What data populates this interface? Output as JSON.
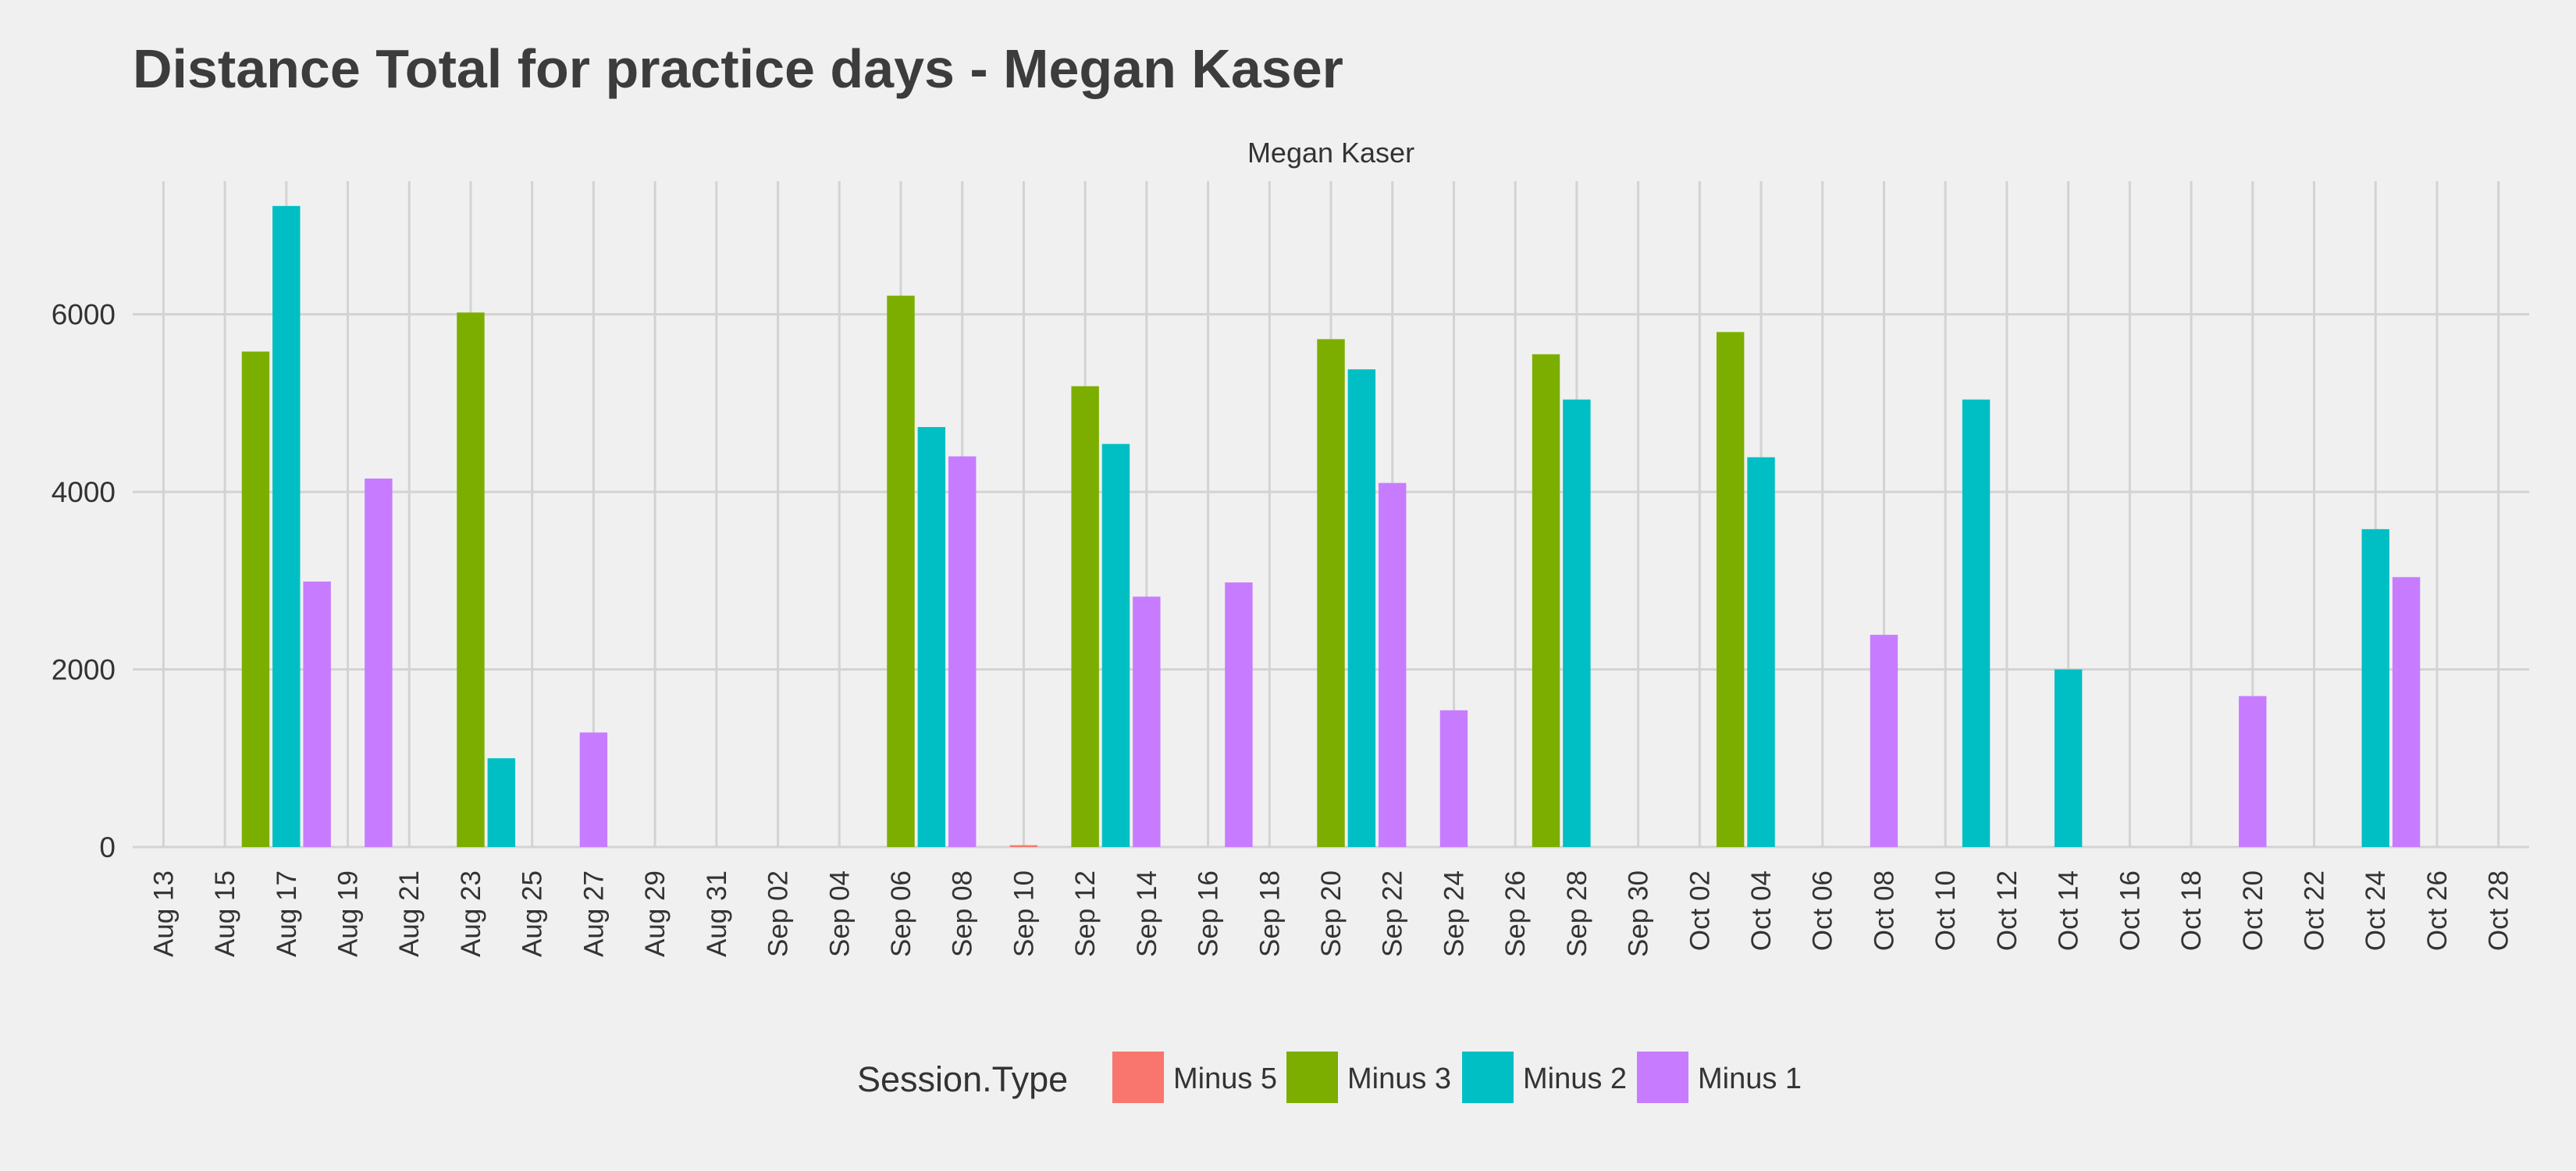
{
  "chart_data": {
    "type": "bar",
    "title": "Distance Total for practice days -  Megan Kaser",
    "facet_label": "Megan Kaser",
    "xlabel": "",
    "ylabel": "",
    "ylim": [
      0,
      7500
    ],
    "yticks": [
      0,
      2000,
      4000,
      6000
    ],
    "x_range": [
      "2018-08-12",
      "2018-10-29"
    ],
    "x_ticks": [
      {
        "date": "2018-08-13",
        "label": "Aug 13"
      },
      {
        "date": "2018-08-15",
        "label": "Aug 15"
      },
      {
        "date": "2018-08-17",
        "label": "Aug 17"
      },
      {
        "date": "2018-08-19",
        "label": "Aug 19"
      },
      {
        "date": "2018-08-21",
        "label": "Aug 21"
      },
      {
        "date": "2018-08-23",
        "label": "Aug 23"
      },
      {
        "date": "2018-08-25",
        "label": "Aug 25"
      },
      {
        "date": "2018-08-27",
        "label": "Aug 27"
      },
      {
        "date": "2018-08-29",
        "label": "Aug 29"
      },
      {
        "date": "2018-08-31",
        "label": "Aug 31"
      },
      {
        "date": "2018-09-02",
        "label": "Sep 02"
      },
      {
        "date": "2018-09-04",
        "label": "Sep 04"
      },
      {
        "date": "2018-09-06",
        "label": "Sep 06"
      },
      {
        "date": "2018-09-08",
        "label": "Sep 08"
      },
      {
        "date": "2018-09-10",
        "label": "Sep 10"
      },
      {
        "date": "2018-09-12",
        "label": "Sep 12"
      },
      {
        "date": "2018-09-14",
        "label": "Sep 14"
      },
      {
        "date": "2018-09-16",
        "label": "Sep 16"
      },
      {
        "date": "2018-09-18",
        "label": "Sep 18"
      },
      {
        "date": "2018-09-20",
        "label": "Sep 20"
      },
      {
        "date": "2018-09-22",
        "label": "Sep 22"
      },
      {
        "date": "2018-09-24",
        "label": "Sep 24"
      },
      {
        "date": "2018-09-26",
        "label": "Sep 26"
      },
      {
        "date": "2018-09-28",
        "label": "Sep 28"
      },
      {
        "date": "2018-09-30",
        "label": "Sep 30"
      },
      {
        "date": "2018-10-02",
        "label": "Oct 02"
      },
      {
        "date": "2018-10-04",
        "label": "Oct 04"
      },
      {
        "date": "2018-10-06",
        "label": "Oct 06"
      },
      {
        "date": "2018-10-08",
        "label": "Oct 08"
      },
      {
        "date": "2018-10-10",
        "label": "Oct 10"
      },
      {
        "date": "2018-10-12",
        "label": "Oct 12"
      },
      {
        "date": "2018-10-14",
        "label": "Oct 14"
      },
      {
        "date": "2018-10-16",
        "label": "Oct 16"
      },
      {
        "date": "2018-10-18",
        "label": "Oct 18"
      },
      {
        "date": "2018-10-20",
        "label": "Oct 20"
      },
      {
        "date": "2018-10-22",
        "label": "Oct 22"
      },
      {
        "date": "2018-10-24",
        "label": "Oct 24"
      },
      {
        "date": "2018-10-26",
        "label": "Oct 26"
      },
      {
        "date": "2018-10-28",
        "label": "Oct 28"
      }
    ],
    "grid": true,
    "legend": {
      "title": "Session.Type",
      "position": "bottom",
      "entries": [
        "Minus 5",
        "Minus 3",
        "Minus 2",
        "Minus 1"
      ]
    },
    "series": [
      {
        "name": "Minus 5",
        "color": "#F8766D",
        "points": [
          {
            "x": "2018-09-10",
            "y": 20
          }
        ]
      },
      {
        "name": "Minus 3",
        "color": "#7CAE00",
        "points": [
          {
            "x": "2018-08-16",
            "y": 5580
          },
          {
            "x": "2018-08-23",
            "y": 6020
          },
          {
            "x": "2018-09-06",
            "y": 6210
          },
          {
            "x": "2018-09-12",
            "y": 5190
          },
          {
            "x": "2018-09-20",
            "y": 5720
          },
          {
            "x": "2018-09-27",
            "y": 5550
          },
          {
            "x": "2018-10-03",
            "y": 5800
          }
        ]
      },
      {
        "name": "Minus 2",
        "color": "#00BFC4",
        "points": [
          {
            "x": "2018-08-17",
            "y": 7220
          },
          {
            "x": "2018-08-24",
            "y": 1000
          },
          {
            "x": "2018-09-07",
            "y": 4730
          },
          {
            "x": "2018-09-13",
            "y": 4540
          },
          {
            "x": "2018-09-21",
            "y": 5380
          },
          {
            "x": "2018-09-28",
            "y": 5040
          },
          {
            "x": "2018-10-04",
            "y": 4390
          },
          {
            "x": "2018-10-11",
            "y": 5040
          },
          {
            "x": "2018-10-14",
            "y": 2000
          },
          {
            "x": "2018-10-24",
            "y": 3580
          }
        ]
      },
      {
        "name": "Minus 1",
        "color": "#C77CFF",
        "points": [
          {
            "x": "2018-08-18",
            "y": 2990
          },
          {
            "x": "2018-08-20",
            "y": 4150
          },
          {
            "x": "2018-08-27",
            "y": 1290
          },
          {
            "x": "2018-09-08",
            "y": 4400
          },
          {
            "x": "2018-09-14",
            "y": 2820
          },
          {
            "x": "2018-09-17",
            "y": 2980
          },
          {
            "x": "2018-09-22",
            "y": 4100
          },
          {
            "x": "2018-09-24",
            "y": 1540
          },
          {
            "x": "2018-10-08",
            "y": 2390
          },
          {
            "x": "2018-10-20",
            "y": 1700
          },
          {
            "x": "2018-10-25",
            "y": 3040
          }
        ]
      }
    ]
  }
}
